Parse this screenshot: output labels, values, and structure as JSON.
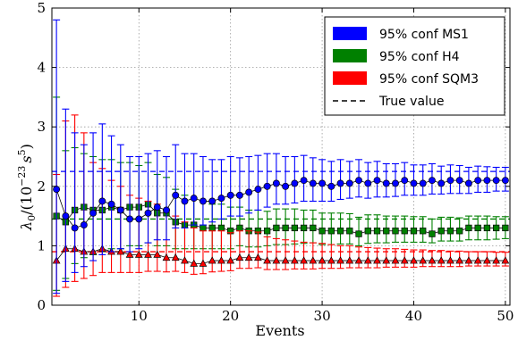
{
  "chart_data": {
    "type": "line",
    "xlabel": "Events",
    "ylabel_main": "λ",
    "ylabel_sub": "0",
    "ylabel_rest": "/(10",
    "ylabel_exp": "−23",
    "ylabel_unit": "s",
    "ylabel_unit_exp": "5",
    "ylabel_close": ")",
    "xlim": [
      0.5,
      50.5
    ],
    "ylim": [
      0,
      5
    ],
    "x_ticks": [
      10,
      20,
      30,
      40,
      50
    ],
    "y_ticks": [
      0,
      1,
      2,
      3,
      4,
      5
    ],
    "grid": true,
    "legend_placement": "top-right",
    "x": [
      1,
      2,
      3,
      4,
      5,
      6,
      7,
      8,
      9,
      10,
      11,
      12,
      13,
      14,
      15,
      16,
      17,
      18,
      19,
      20,
      21,
      22,
      23,
      24,
      25,
      26,
      27,
      28,
      29,
      30,
      31,
      32,
      33,
      34,
      35,
      36,
      37,
      38,
      39,
      40,
      41,
      42,
      43,
      44,
      45,
      46,
      47,
      48,
      49,
      50
    ],
    "series": [
      {
        "name": "95% conf MS1",
        "color": "#0000ff",
        "marker": "circle",
        "true_value": 2.25,
        "values": [
          1.95,
          1.5,
          1.3,
          1.35,
          1.55,
          1.75,
          1.7,
          1.6,
          1.45,
          1.45,
          1.55,
          1.65,
          1.6,
          1.85,
          1.75,
          1.8,
          1.75,
          1.75,
          1.8,
          1.85,
          1.85,
          1.9,
          1.95,
          2.0,
          2.05,
          2.0,
          2.05,
          2.1,
          2.05,
          2.05,
          2.0,
          2.05,
          2.05,
          2.1,
          2.05,
          2.1,
          2.05,
          2.05,
          2.1,
          2.05,
          2.05,
          2.1,
          2.05,
          2.1,
          2.1,
          2.05,
          2.1,
          2.1,
          2.1,
          2.1
        ],
        "lower": [
          0.2,
          0.4,
          0.55,
          0.65,
          0.75,
          0.85,
          0.9,
          0.95,
          0.9,
          0.95,
          1.05,
          1.1,
          1.1,
          1.3,
          1.3,
          1.35,
          1.35,
          1.4,
          1.45,
          1.5,
          1.5,
          1.55,
          1.6,
          1.65,
          1.7,
          1.7,
          1.72,
          1.75,
          1.75,
          1.75,
          1.75,
          1.78,
          1.8,
          1.82,
          1.8,
          1.82,
          1.82,
          1.83,
          1.85,
          1.85,
          1.85,
          1.87,
          1.87,
          1.88,
          1.88,
          1.88,
          1.9,
          1.9,
          1.92,
          1.92
        ],
        "upper": [
          4.8,
          3.3,
          2.9,
          2.7,
          2.9,
          3.05,
          2.85,
          2.7,
          2.5,
          2.5,
          2.55,
          2.6,
          2.5,
          2.7,
          2.55,
          2.55,
          2.5,
          2.45,
          2.45,
          2.5,
          2.48,
          2.5,
          2.52,
          2.55,
          2.55,
          2.5,
          2.5,
          2.52,
          2.48,
          2.45,
          2.42,
          2.45,
          2.42,
          2.45,
          2.4,
          2.42,
          2.38,
          2.38,
          2.4,
          2.36,
          2.36,
          2.38,
          2.34,
          2.36,
          2.35,
          2.32,
          2.34,
          2.33,
          2.32,
          2.32
        ]
      },
      {
        "name": "95% conf H4",
        "color": "#008000",
        "marker": "square",
        "true_value": 1.45,
        "values": [
          1.5,
          1.4,
          1.6,
          1.65,
          1.6,
          1.6,
          1.65,
          1.6,
          1.65,
          1.65,
          1.7,
          1.55,
          1.55,
          1.4,
          1.35,
          1.35,
          1.3,
          1.3,
          1.3,
          1.25,
          1.3,
          1.25,
          1.25,
          1.25,
          1.3,
          1.3,
          1.3,
          1.3,
          1.3,
          1.25,
          1.25,
          1.25,
          1.25,
          1.2,
          1.25,
          1.25,
          1.25,
          1.25,
          1.25,
          1.25,
          1.25,
          1.2,
          1.25,
          1.25,
          1.25,
          1.3,
          1.3,
          1.3,
          1.3,
          1.3
        ],
        "lower": [
          0.25,
          0.45,
          0.7,
          0.8,
          0.85,
          0.9,
          0.95,
          0.95,
          1.0,
          1.0,
          1.05,
          1.0,
          1.0,
          0.95,
          0.95,
          0.95,
          0.95,
          0.95,
          0.95,
          0.95,
          1.0,
          0.98,
          0.98,
          1.0,
          1.02,
          1.02,
          1.03,
          1.04,
          1.05,
          1.02,
          1.02,
          1.03,
          1.03,
          1.0,
          1.04,
          1.05,
          1.05,
          1.06,
          1.06,
          1.06,
          1.06,
          1.05,
          1.08,
          1.08,
          1.08,
          1.1,
          1.1,
          1.1,
          1.11,
          1.12
        ],
        "upper": [
          3.5,
          2.6,
          2.65,
          2.55,
          2.5,
          2.45,
          2.45,
          2.4,
          2.4,
          2.35,
          2.4,
          2.2,
          2.15,
          1.95,
          1.85,
          1.8,
          1.75,
          1.7,
          1.7,
          1.65,
          1.65,
          1.6,
          1.6,
          1.58,
          1.62,
          1.62,
          1.62,
          1.6,
          1.6,
          1.55,
          1.55,
          1.55,
          1.54,
          1.48,
          1.52,
          1.52,
          1.5,
          1.5,
          1.5,
          1.49,
          1.49,
          1.45,
          1.48,
          1.48,
          1.47,
          1.5,
          1.5,
          1.5,
          1.49,
          1.49
        ]
      },
      {
        "name": "95% conf SQM3",
        "color": "#ff0000",
        "marker": "triangle",
        "true_value": 0.9,
        "values": [
          0.75,
          0.95,
          0.95,
          0.9,
          0.9,
          0.95,
          0.9,
          0.9,
          0.85,
          0.85,
          0.85,
          0.85,
          0.8,
          0.8,
          0.75,
          0.7,
          0.7,
          0.75,
          0.75,
          0.75,
          0.8,
          0.8,
          0.8,
          0.75,
          0.75,
          0.75,
          0.75,
          0.75,
          0.75,
          0.75,
          0.75,
          0.75,
          0.75,
          0.75,
          0.75,
          0.75,
          0.75,
          0.75,
          0.75,
          0.75,
          0.75,
          0.75,
          0.75,
          0.75,
          0.75,
          0.75,
          0.75,
          0.75,
          0.75,
          0.75
        ],
        "lower": [
          0.15,
          0.3,
          0.4,
          0.45,
          0.5,
          0.55,
          0.55,
          0.55,
          0.55,
          0.55,
          0.57,
          0.57,
          0.56,
          0.57,
          0.55,
          0.52,
          0.53,
          0.56,
          0.57,
          0.58,
          0.62,
          0.62,
          0.63,
          0.6,
          0.6,
          0.6,
          0.61,
          0.61,
          0.61,
          0.62,
          0.62,
          0.62,
          0.63,
          0.63,
          0.63,
          0.63,
          0.64,
          0.64,
          0.64,
          0.64,
          0.65,
          0.65,
          0.65,
          0.65,
          0.65,
          0.66,
          0.66,
          0.66,
          0.66,
          0.66
        ],
        "upper": [
          2.2,
          3.1,
          3.2,
          2.9,
          2.4,
          2.3,
          2.1,
          2.0,
          1.85,
          1.8,
          1.75,
          1.7,
          1.6,
          1.5,
          1.4,
          1.3,
          1.25,
          1.25,
          1.25,
          1.22,
          1.25,
          1.25,
          1.23,
          1.15,
          1.12,
          1.1,
          1.08,
          1.06,
          1.05,
          1.04,
          1.02,
          1.0,
          1.0,
          0.98,
          0.97,
          0.96,
          0.95,
          0.95,
          0.94,
          0.93,
          0.93,
          0.92,
          0.92,
          0.91,
          0.91,
          0.9,
          0.9,
          0.9,
          0.89,
          0.89
        ]
      }
    ],
    "legend": [
      {
        "label": "95% conf MS1",
        "color": "#0000ff",
        "kind": "patch"
      },
      {
        "label": "95% conf H4",
        "color": "#008000",
        "kind": "patch"
      },
      {
        "label": "95% conf SQM3",
        "color": "#ff0000",
        "kind": "patch"
      },
      {
        "label": "True value",
        "color": "#000000",
        "kind": "dashed-line"
      }
    ]
  }
}
